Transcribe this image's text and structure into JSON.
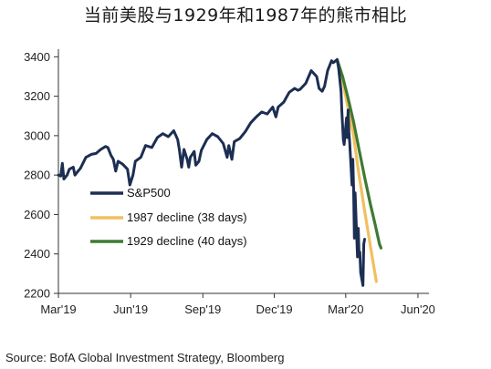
{
  "title": "当前美股与1929年和1987年的熊市相比",
  "source": "Source: BofA Global Investment Strategy, Bloomberg",
  "chart_data": {
    "type": "line",
    "title": "当前美股与1929年和1987年的熊市相比",
    "xlabel": "",
    "ylabel": "",
    "x_tick_labels": [
      "Mar'19",
      "Jun'19",
      "Sep'19",
      "Dec'19",
      "Mar'20",
      "Jun'20"
    ],
    "x_ticks": [
      "2019-03-01",
      "2019-06-01",
      "2019-09-01",
      "2019-12-01",
      "2020-03-01",
      "2020-06-01"
    ],
    "xlim": [
      "2019-03-01",
      "2020-06-15"
    ],
    "ylim": [
      2200,
      3420
    ],
    "y_ticks": [
      2200,
      2400,
      2600,
      2800,
      3000,
      3200,
      3400
    ],
    "grid": false,
    "legend_position": "middle-left",
    "series": [
      {
        "name": "S&P500",
        "color": "#1c2e52",
        "x": [
          "2019-03-01",
          "2019-03-04",
          "2019-03-06",
          "2019-03-08",
          "2019-03-12",
          "2019-03-15",
          "2019-03-20",
          "2019-03-22",
          "2019-03-26",
          "2019-03-29",
          "2019-04-05",
          "2019-04-12",
          "2019-04-18",
          "2019-04-24",
          "2019-04-30",
          "2019-05-03",
          "2019-05-07",
          "2019-05-10",
          "2019-05-13",
          "2019-05-16",
          "2019-05-22",
          "2019-05-28",
          "2019-05-31",
          "2019-06-04",
          "2019-06-07",
          "2019-06-14",
          "2019-06-20",
          "2019-06-28",
          "2019-07-05",
          "2019-07-12",
          "2019-07-19",
          "2019-07-26",
          "2019-07-31",
          "2019-08-02",
          "2019-08-05",
          "2019-08-08",
          "2019-08-12",
          "2019-08-14",
          "2019-08-16",
          "2019-08-21",
          "2019-08-23",
          "2019-08-27",
          "2019-08-30",
          "2019-09-06",
          "2019-09-13",
          "2019-09-20",
          "2019-09-27",
          "2019-10-02",
          "2019-10-04",
          "2019-10-08",
          "2019-10-11",
          "2019-10-18",
          "2019-10-25",
          "2019-11-01",
          "2019-11-08",
          "2019-11-15",
          "2019-11-22",
          "2019-11-29",
          "2019-12-03",
          "2019-12-06",
          "2019-12-13",
          "2019-12-20",
          "2019-12-27",
          "2019-12-31",
          "2020-01-03",
          "2020-01-10",
          "2020-01-17",
          "2020-01-24",
          "2020-01-27",
          "2020-01-31",
          "2020-02-03",
          "2020-02-07",
          "2020-02-12",
          "2020-02-14",
          "2020-02-19",
          "2020-02-21",
          "2020-02-24",
          "2020-02-25",
          "2020-02-27",
          "2020-02-28",
          "2020-03-02",
          "2020-03-03",
          "2020-03-04",
          "2020-03-05",
          "2020-03-06",
          "2020-03-09",
          "2020-03-10",
          "2020-03-11",
          "2020-03-12",
          "2020-03-13",
          "2020-03-16",
          "2020-03-17",
          "2020-03-18",
          "2020-03-19",
          "2020-03-20",
          "2020-03-23",
          "2020-03-24",
          "2020-03-25"
        ],
        "values": [
          2800,
          2795,
          2860,
          2780,
          2800,
          2830,
          2840,
          2800,
          2820,
          2834,
          2890,
          2905,
          2910,
          2930,
          2945,
          2940,
          2900,
          2880,
          2820,
          2870,
          2855,
          2830,
          2750,
          2800,
          2870,
          2890,
          2950,
          2940,
          2990,
          3010,
          2995,
          3025,
          2980,
          2930,
          2840,
          2930,
          2880,
          2840,
          2890,
          2920,
          2850,
          2870,
          2925,
          2980,
          3010,
          2995,
          2960,
          2890,
          2950,
          2880,
          2970,
          2985,
          3020,
          3065,
          3095,
          3120,
          3110,
          3145,
          3095,
          3145,
          3170,
          3220,
          3240,
          3230,
          3235,
          3265,
          3330,
          3300,
          3240,
          3225,
          3250,
          3330,
          3380,
          3370,
          3386,
          3340,
          3225,
          3130,
          2980,
          2955,
          3090,
          2990,
          3130,
          3020,
          2970,
          2750,
          2880,
          2740,
          2480,
          2710,
          2385,
          2530,
          2400,
          2410,
          2305,
          2240,
          2450,
          2475
        ]
      },
      {
        "name": "1987 decline (38 days)",
        "color": "#f0c060",
        "x": [
          "2020-02-19",
          "2020-02-26",
          "2020-03-04",
          "2020-03-11",
          "2020-03-18",
          "2020-03-25",
          "2020-04-01",
          "2020-04-06",
          "2020-04-09"
        ],
        "values": [
          3386,
          3280,
          3140,
          3000,
          2800,
          2620,
          2450,
          2330,
          2260
        ]
      },
      {
        "name": "1929 decline (40 days)",
        "color": "#3e7a32",
        "x": [
          "2020-02-19",
          "2020-02-26",
          "2020-03-04",
          "2020-03-11",
          "2020-03-18",
          "2020-03-25",
          "2020-04-01",
          "2020-04-08",
          "2020-04-13",
          "2020-04-15"
        ],
        "values": [
          3386,
          3300,
          3190,
          3070,
          2930,
          2790,
          2660,
          2540,
          2450,
          2430
        ]
      }
    ]
  }
}
